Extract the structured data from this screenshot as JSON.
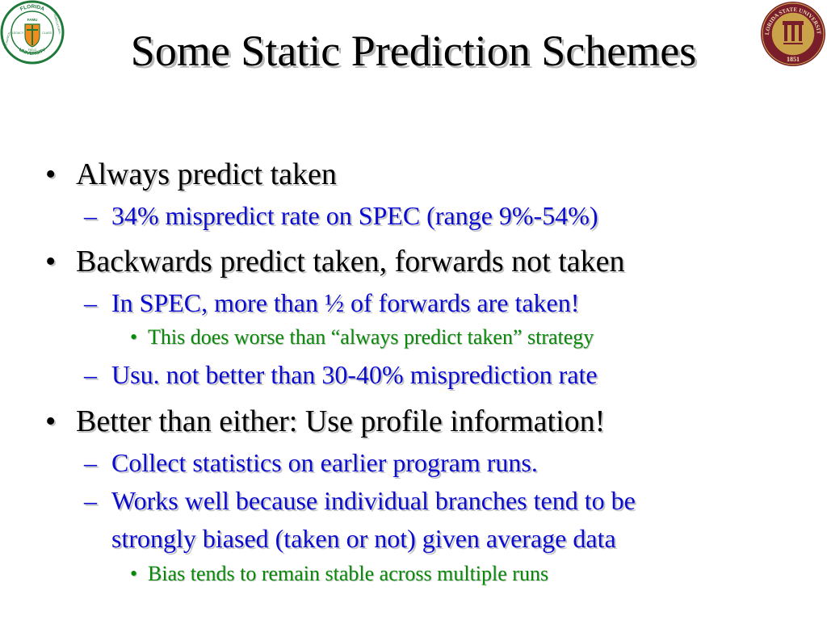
{
  "slide": {
    "title": "Some Static Prediction Schemes",
    "logos": {
      "left": {
        "ring_top": "FLORIDA",
        "ring_right": "AGRICULTURAL",
        "ring_bottom": "UNIVERSITY",
        "ring_left": "MECHANICAL",
        "center_top": "FAMU",
        "center_left": "LEGACY",
        "center_right": "CLASS",
        "center_bottom": "FIELD",
        "colors": {
          "ring": "#1f7a3a",
          "accent": "#f28c1e"
        }
      },
      "right": {
        "ring_top": "FLORIDA STATE UNIVERSITY",
        "year": "1851",
        "colors": {
          "ring": "#7a1d2a",
          "accent": "#c9a24a"
        }
      }
    },
    "items": [
      {
        "level": 1,
        "marker": "•",
        "text": "Always predict taken"
      },
      {
        "level": 2,
        "marker": "–",
        "text": "34% mispredict rate on SPEC (range 9%-54%)"
      },
      {
        "level": 1,
        "marker": "•",
        "text": "Backwards predict taken, forwards not taken"
      },
      {
        "level": 2,
        "marker": "–",
        "text": "In SPEC, more than ½ of forwards are taken!"
      },
      {
        "level": 3,
        "marker": "•",
        "text": "This does worse than “always predict taken” strategy"
      },
      {
        "level": 2,
        "marker": "–",
        "text": "Usu. not better than 30-40% misprediction rate"
      },
      {
        "level": 1,
        "marker": "•",
        "text": "Better than either: Use profile information!"
      },
      {
        "level": 2,
        "marker": "–",
        "text": "Collect statistics on earlier program runs."
      },
      {
        "level": 2,
        "marker": "–",
        "text": "Works well because individual branches tend to be"
      },
      {
        "level": 2,
        "marker": "",
        "text": "strongly biased (taken or not) given average data"
      },
      {
        "level": 3,
        "marker": "•",
        "text": "Bias tends to remain stable across multiple runs"
      }
    ]
  }
}
